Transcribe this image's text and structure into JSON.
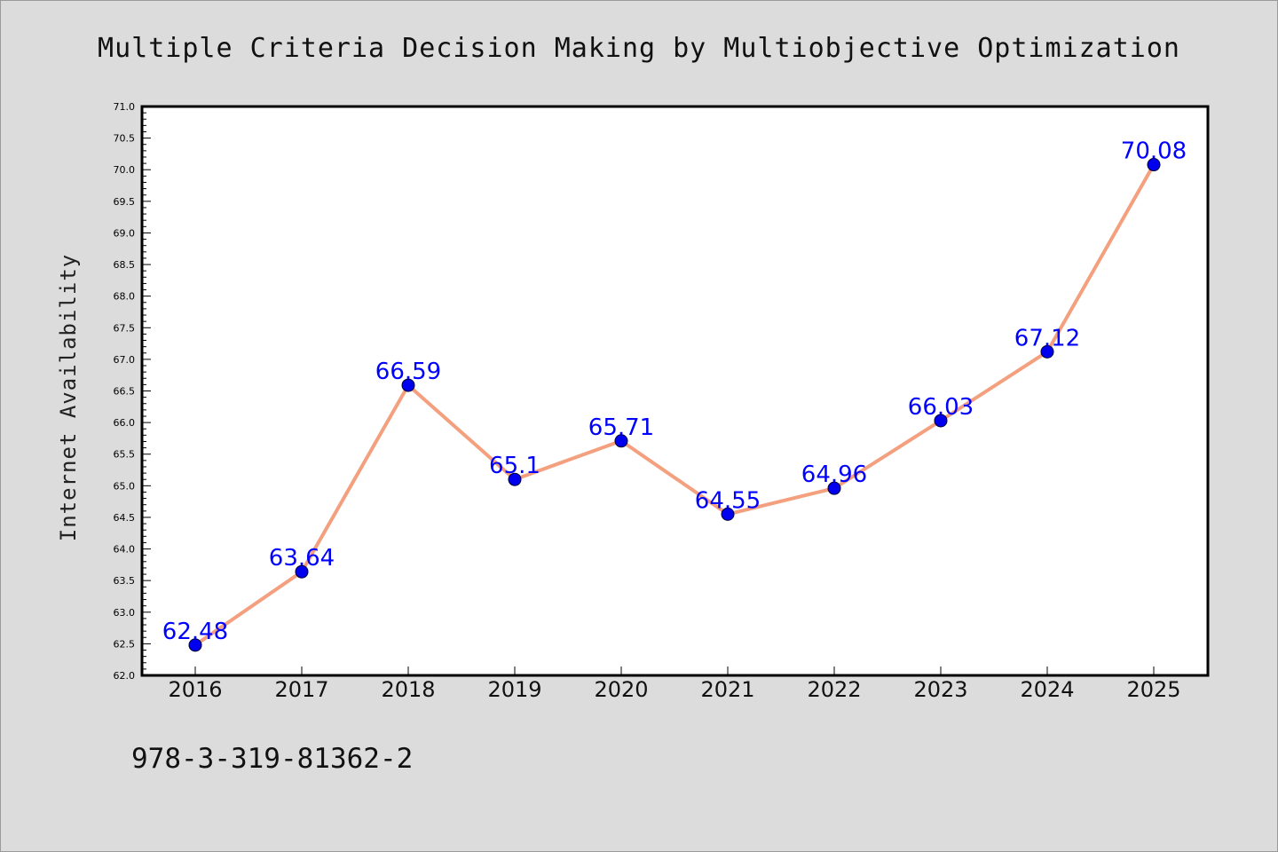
{
  "chart_data": {
    "type": "line",
    "title": "Multiple Criteria Decision Making by Multiobjective Optimization",
    "ylabel": "Internet Availability",
    "xlabel": "",
    "categories": [
      "2016",
      "2017",
      "2018",
      "2019",
      "2020",
      "2021",
      "2022",
      "2023",
      "2024",
      "2025"
    ],
    "series": [
      {
        "values": [
          62.48,
          63.64,
          66.59,
          65.1,
          65.71,
          64.55,
          64.96,
          66.03,
          67.12,
          70.08
        ],
        "data_labels": [
          "62.48",
          "63.64",
          "66.59",
          "65.1",
          "65.71",
          "64.55",
          "64.96",
          "66.03",
          "67.12",
          "70.08"
        ],
        "line_color": "#f4a07f",
        "marker_color": "#0000ee",
        "label_color": "#0000ff"
      }
    ],
    "ylim": [
      62.0,
      71.0
    ],
    "y_ticks": [
      "62.0",
      "62.5",
      "63.0",
      "63.5",
      "64.0",
      "64.5",
      "65.0",
      "65.5",
      "66.0",
      "66.5",
      "67.0",
      "67.5",
      "68.0",
      "68.5",
      "69.0",
      "69.5",
      "70.0",
      "70.5",
      "71.0"
    ],
    "grid": false,
    "legend": "none"
  },
  "footer": {
    "text": "978-3-319-81362-2"
  },
  "colors": {
    "background": "#dcdcdc",
    "plot_background": "#ffffff",
    "axis": "#000000"
  }
}
